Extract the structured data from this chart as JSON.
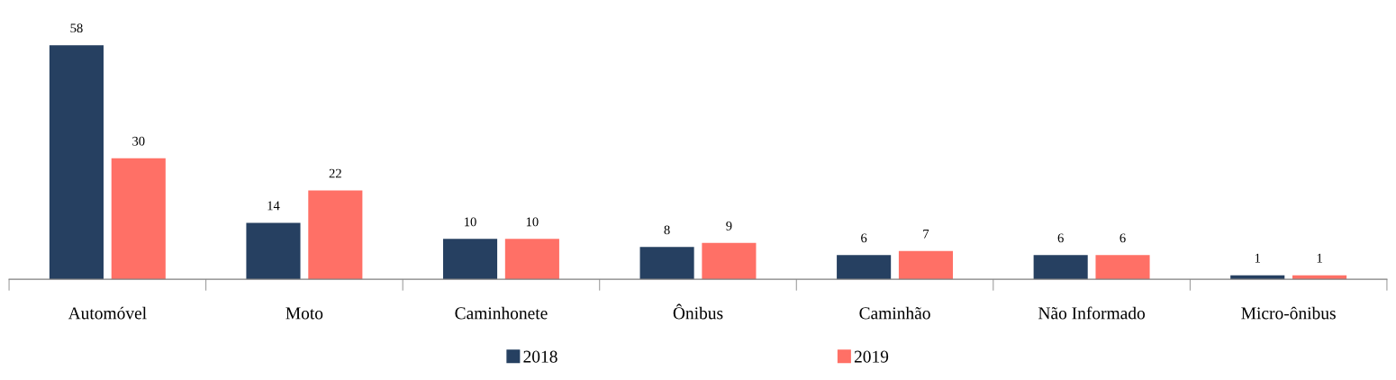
{
  "chart_data": {
    "type": "bar",
    "categories": [
      "Automóvel",
      "Moto",
      "Caminhonete",
      "Ônibus",
      "Caminhão",
      "Não Informado",
      "Micro-ônibus"
    ],
    "series": [
      {
        "name": "2018",
        "color": "#264061",
        "values": [
          58,
          14,
          10,
          8,
          6,
          6,
          1
        ]
      },
      {
        "name": "2019",
        "color": "#ff7066",
        "values": [
          30,
          22,
          10,
          9,
          7,
          6,
          1
        ]
      }
    ],
    "data_labels": true,
    "grid": false,
    "legend": "bottom"
  }
}
